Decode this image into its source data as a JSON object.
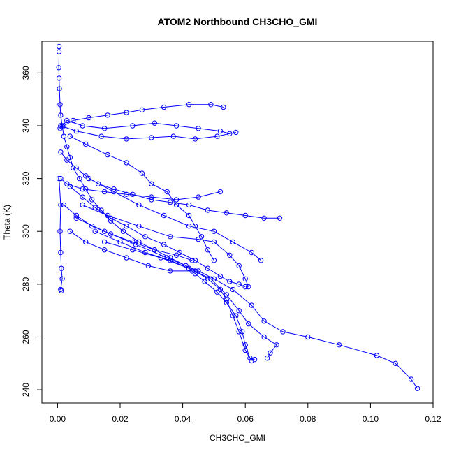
{
  "chart_data": {
    "type": "line",
    "title": "ATOM2 Northbound CH3CHO_GMI",
    "xlabel": "CH3CHO_GMI",
    "ylabel": "Theta (K)",
    "xlim": [
      -0.005,
      0.12
    ],
    "ylim": [
      235,
      372
    ],
    "x_ticks": [
      0.0,
      0.02,
      0.04,
      0.06,
      0.08,
      0.1,
      0.12
    ],
    "x_tick_labels": [
      "0.00",
      "0.02",
      "0.04",
      "0.06",
      "0.08",
      "0.10",
      "0.12"
    ],
    "y_ticks": [
      240,
      260,
      280,
      300,
      320,
      340,
      360
    ],
    "y_tick_labels": [
      "240",
      "260",
      "280",
      "300",
      "320",
      "340",
      "360"
    ],
    "grid": false,
    "color": "#0000ff",
    "marker": "open-circle",
    "series": [
      {
        "points": [
          [
            0.0005,
            370
          ],
          [
            0.0005,
            368
          ],
          [
            0.0004,
            362
          ],
          [
            0.0005,
            358
          ],
          [
            0.0006,
            354
          ],
          [
            0.0008,
            348
          ],
          [
            0.001,
            344
          ],
          [
            0.0015,
            340
          ],
          [
            0.002,
            336
          ],
          [
            0.003,
            332
          ],
          [
            0.004,
            328
          ],
          [
            0.005,
            324
          ],
          [
            0.007,
            320
          ],
          [
            0.009,
            316
          ],
          [
            0.011,
            312
          ],
          [
            0.014,
            308
          ],
          [
            0.017,
            304
          ],
          [
            0.021,
            300
          ],
          [
            0.026,
            296
          ],
          [
            0.031,
            293
          ],
          [
            0.036,
            290
          ],
          [
            0.041,
            287
          ],
          [
            0.044,
            284
          ],
          [
            0.047,
            281
          ],
          [
            0.051,
            277
          ],
          [
            0.054,
            273
          ],
          [
            0.057,
            268
          ],
          [
            0.059,
            262
          ],
          [
            0.06,
            257
          ],
          [
            0.0615,
            252
          ],
          [
            0.063,
            251.5
          ]
        ]
      },
      {
        "points": [
          [
            0.0008,
            339
          ],
          [
            0.003,
            342
          ],
          [
            0.008,
            340
          ],
          [
            0.015,
            339
          ],
          [
            0.024,
            340
          ],
          [
            0.031,
            341
          ],
          [
            0.038,
            340
          ],
          [
            0.045,
            339
          ],
          [
            0.052,
            338
          ],
          [
            0.055,
            337
          ]
        ]
      },
      {
        "points": [
          [
            0.001,
            330
          ],
          [
            0.003,
            327
          ],
          [
            0.006,
            324
          ],
          [
            0.009,
            321
          ],
          [
            0.013,
            318
          ],
          [
            0.018,
            316
          ],
          [
            0.024,
            314
          ],
          [
            0.03,
            312
          ],
          [
            0.036,
            311
          ],
          [
            0.042,
            310
          ],
          [
            0.048,
            308
          ],
          [
            0.054,
            307
          ],
          [
            0.06,
            306
          ],
          [
            0.066,
            305
          ],
          [
            0.071,
            305
          ]
        ]
      },
      {
        "points": [
          [
            0.002,
            340
          ],
          [
            0.005,
            342
          ],
          [
            0.01,
            343
          ],
          [
            0.016,
            344
          ],
          [
            0.022,
            345
          ],
          [
            0.027,
            346
          ],
          [
            0.034,
            347
          ],
          [
            0.042,
            348
          ],
          [
            0.049,
            348
          ],
          [
            0.053,
            347
          ]
        ]
      },
      {
        "points": [
          [
            0.001,
            320
          ],
          [
            0.004,
            317
          ],
          [
            0.008,
            313
          ],
          [
            0.012,
            309
          ],
          [
            0.017,
            305
          ],
          [
            0.022,
            302
          ],
          [
            0.028,
            298
          ],
          [
            0.034,
            295
          ],
          [
            0.039,
            292
          ],
          [
            0.044,
            289
          ],
          [
            0.048,
            286
          ],
          [
            0.052,
            283
          ],
          [
            0.055,
            281
          ],
          [
            0.058,
            280
          ],
          [
            0.06,
            279
          ]
        ]
      },
      {
        "points": [
          [
            0.003,
            318
          ],
          [
            0.008,
            316
          ],
          [
            0.015,
            315
          ],
          [
            0.022,
            314
          ],
          [
            0.03,
            313
          ],
          [
            0.038,
            312
          ],
          [
            0.045,
            313
          ],
          [
            0.052,
            315
          ]
        ]
      },
      {
        "points": [
          [
            0.002,
            310
          ],
          [
            0.006,
            306
          ],
          [
            0.011,
            302
          ],
          [
            0.017,
            299
          ],
          [
            0.024,
            296
          ],
          [
            0.031,
            293
          ],
          [
            0.038,
            291
          ],
          [
            0.043,
            289
          ]
        ]
      },
      {
        "points": [
          [
            0.004,
            300
          ],
          [
            0.009,
            296
          ],
          [
            0.015,
            293
          ],
          [
            0.022,
            290
          ],
          [
            0.029,
            287
          ],
          [
            0.036,
            285
          ],
          [
            0.043,
            285
          ]
        ]
      },
      {
        "points": [
          [
            0.01,
            320
          ],
          [
            0.018,
            315
          ],
          [
            0.026,
            310
          ],
          [
            0.034,
            306
          ],
          [
            0.042,
            302
          ],
          [
            0.05,
            300
          ],
          [
            0.056,
            296
          ],
          [
            0.062,
            292
          ],
          [
            0.065,
            289
          ]
        ]
      },
      {
        "points": [
          [
            0.012,
            300
          ],
          [
            0.02,
            296
          ],
          [
            0.028,
            292
          ],
          [
            0.036,
            289
          ],
          [
            0.044,
            285
          ],
          [
            0.048,
            282
          ],
          [
            0.052,
            278
          ],
          [
            0.054,
            274
          ],
          [
            0.056,
            268
          ],
          [
            0.058,
            262
          ],
          [
            0.06,
            255
          ],
          [
            0.062,
            251
          ]
        ]
      },
      {
        "points": [
          [
            0.006,
            305
          ],
          [
            0.015,
            300
          ],
          [
            0.025,
            295
          ],
          [
            0.035,
            290
          ],
          [
            0.045,
            285
          ],
          [
            0.05,
            282
          ],
          [
            0.056,
            278
          ],
          [
            0.062,
            272
          ],
          [
            0.066,
            266
          ],
          [
            0.072,
            262
          ],
          [
            0.08,
            260
          ],
          [
            0.09,
            257
          ],
          [
            0.102,
            253
          ],
          [
            0.108,
            250
          ],
          [
            0.113,
            244
          ],
          [
            0.115,
            240.5
          ]
        ]
      },
      {
        "points": [
          [
            0.008,
            310
          ],
          [
            0.016,
            306
          ],
          [
            0.026,
            302
          ],
          [
            0.036,
            298
          ],
          [
            0.045,
            297
          ],
          [
            0.05,
            296
          ],
          [
            0.055,
            291
          ],
          [
            0.058,
            287
          ],
          [
            0.06,
            282
          ],
          [
            0.061,
            279
          ]
        ]
      },
      {
        "points": [
          [
            0.015,
            296
          ],
          [
            0.024,
            293
          ],
          [
            0.033,
            290
          ],
          [
            0.042,
            286
          ],
          [
            0.049,
            282
          ],
          [
            0.054,
            276
          ],
          [
            0.058,
            270
          ],
          [
            0.061,
            265
          ],
          [
            0.066,
            260
          ],
          [
            0.07,
            257
          ],
          [
            0.068,
            254
          ],
          [
            0.067,
            252
          ]
        ]
      },
      {
        "points": [
          [
            0.001,
            340
          ],
          [
            0.006,
            338
          ],
          [
            0.014,
            336
          ],
          [
            0.022,
            335
          ],
          [
            0.03,
            335.5
          ],
          [
            0.037,
            336
          ],
          [
            0.044,
            335
          ],
          [
            0.051,
            336
          ],
          [
            0.057,
            337.5
          ]
        ]
      },
      {
        "points": [
          [
            0.0005,
            320
          ],
          [
            0.001,
            310
          ],
          [
            0.0008,
            300
          ],
          [
            0.001,
            292
          ],
          [
            0.0012,
            286
          ],
          [
            0.0015,
            282
          ],
          [
            0.001,
            278
          ],
          [
            0.0012,
            277.5
          ]
        ]
      },
      {
        "points": [
          [
            0.004,
            336
          ],
          [
            0.009,
            333
          ],
          [
            0.016,
            329
          ],
          [
            0.022,
            326
          ],
          [
            0.027,
            322
          ],
          [
            0.03,
            318
          ],
          [
            0.035,
            315
          ],
          [
            0.038,
            310
          ],
          [
            0.042,
            306
          ],
          [
            0.044,
            302
          ],
          [
            0.046,
            298
          ],
          [
            0.048,
            293
          ],
          [
            0.05,
            289
          ]
        ]
      }
    ]
  }
}
